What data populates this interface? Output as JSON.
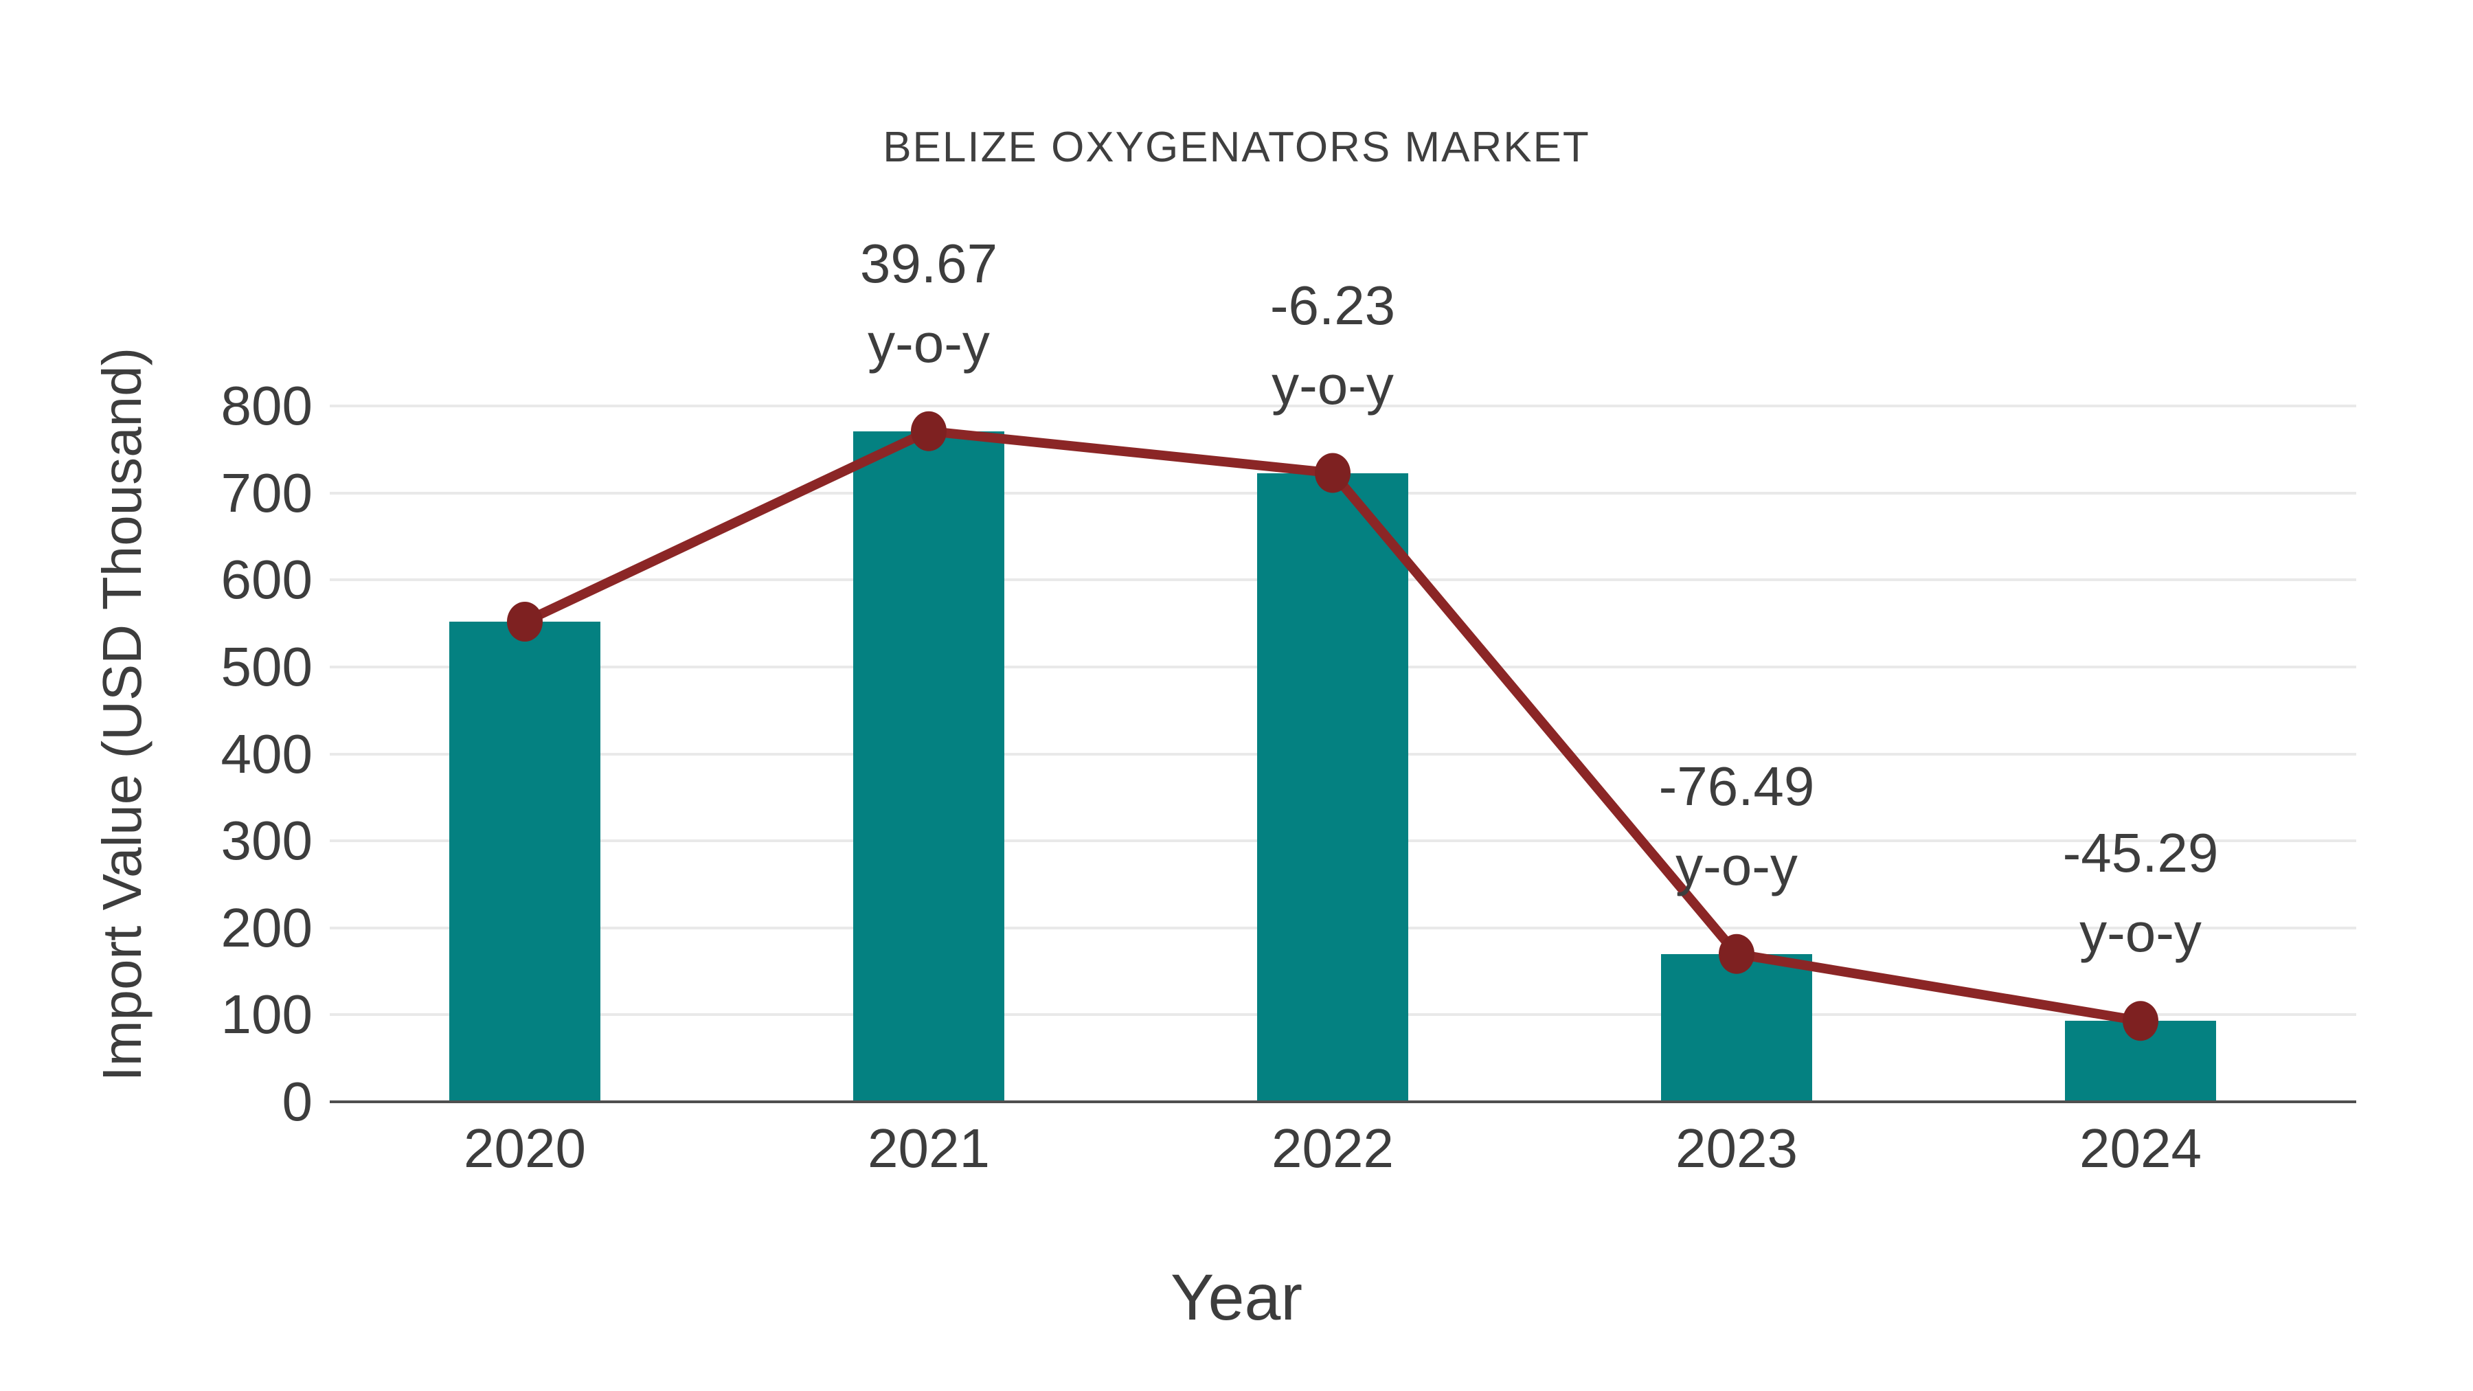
{
  "chart_data": {
    "type": "bar",
    "overlay_type": "line",
    "title": "BELIZE OXYGENATORS MARKET",
    "xlabel": "Year",
    "ylabel": "Import Value (USD Thousand)",
    "categories": [
      "2020",
      "2021",
      "2022",
      "2023",
      "2024"
    ],
    "series": [
      {
        "name": "import-value-bars",
        "type": "bar",
        "values": [
          552,
          771,
          723,
          170,
          93
        ]
      },
      {
        "name": "import-value-trend-line",
        "type": "line",
        "values": [
          552,
          771,
          723,
          170,
          93
        ]
      }
    ],
    "annotations": [
      {
        "category": "2021",
        "line1": "39.67",
        "line2": "y-o-y"
      },
      {
        "category": "2022",
        "line1": "-6.23",
        "line2": "y-o-y"
      },
      {
        "category": "2023",
        "line1": "-76.49",
        "line2": "y-o-y"
      },
      {
        "category": "2024",
        "line1": "-45.29",
        "line2": "y-o-y"
      }
    ],
    "ylim": [
      0,
      800
    ],
    "ytick_step": 100,
    "yticks": [
      "0",
      "100",
      "200",
      "300",
      "400",
      "500",
      "600",
      "700",
      "800"
    ],
    "grid": true,
    "legend": "none",
    "colors": {
      "bar": "#048181",
      "line": "#8B2626",
      "marker": "#7E2121",
      "text": "#3D3D3D",
      "grid": "#E9E9E9",
      "axis": "#4F4F4F"
    }
  }
}
